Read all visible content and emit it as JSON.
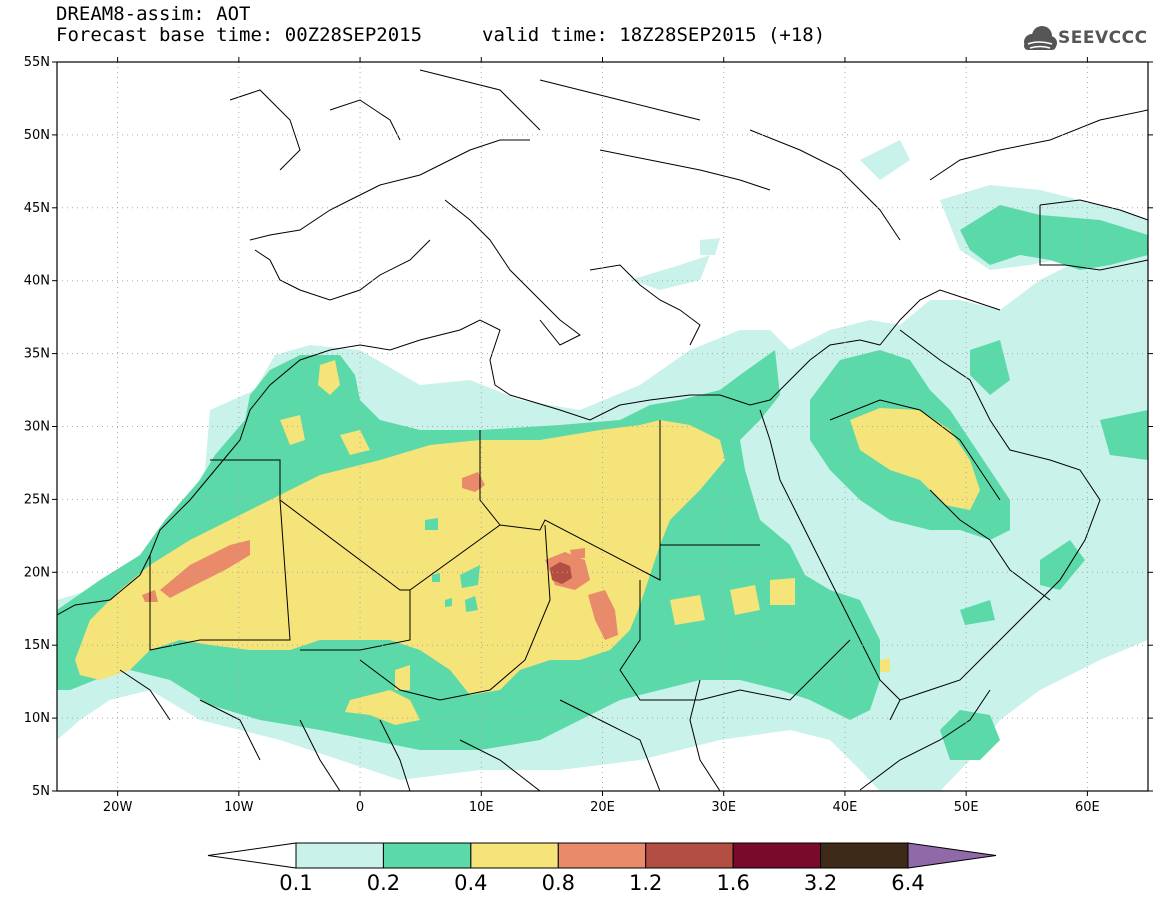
{
  "header": {
    "line1": "DREAM8-assim: AOT",
    "line2": "Forecast base time: 00Z28SEP2015",
    "valid": "valid time: 18Z28SEP2015 (+18)",
    "logo_text": "SEEVCCC",
    "logo_icon": "cloud-icon"
  },
  "map": {
    "lon_range": [
      -25,
      65
    ],
    "lat_range": [
      5,
      55
    ],
    "lon_ticks": [
      {
        "value": -20,
        "label": "20W"
      },
      {
        "value": -10,
        "label": "10W"
      },
      {
        "value": 0,
        "label": "0"
      },
      {
        "value": 10,
        "label": "10E"
      },
      {
        "value": 20,
        "label": "20E"
      },
      {
        "value": 30,
        "label": "30E"
      },
      {
        "value": 40,
        "label": "40E"
      },
      {
        "value": 50,
        "label": "50E"
      },
      {
        "value": 60,
        "label": "60E"
      }
    ],
    "lat_ticks": [
      {
        "value": 55,
        "label": "55N"
      },
      {
        "value": 50,
        "label": "50N"
      },
      {
        "value": 45,
        "label": "45N"
      },
      {
        "value": 40,
        "label": "40N"
      },
      {
        "value": 35,
        "label": "35N"
      },
      {
        "value": 30,
        "label": "30N"
      },
      {
        "value": 25,
        "label": "25N"
      },
      {
        "value": 20,
        "label": "20N"
      },
      {
        "value": 15,
        "label": "15N"
      },
      {
        "value": 10,
        "label": "10N"
      },
      {
        "value": 5,
        "label": "5N"
      }
    ],
    "grid": "dotted"
  },
  "colorbar": {
    "colors": [
      "#ffffff",
      "#c8f2ea",
      "#5bd9a8",
      "#f5e47a",
      "#e98a6a",
      "#b24f42",
      "#7a0a2c",
      "#3e2a18",
      "#8f69a8"
    ],
    "labels": [
      "0.1",
      "0.2",
      "0.4",
      "0.8",
      "1.2",
      "1.6",
      "3.2",
      "6.4"
    ]
  }
}
